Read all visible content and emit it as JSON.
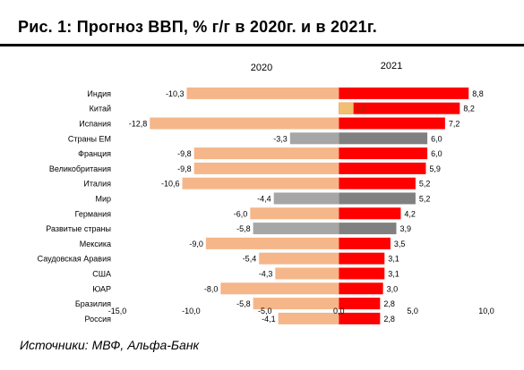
{
  "title": "Рис. 1: Прогноз ВВП, % г/г в 2020г. и в 2021г.",
  "source": "Источники:  МВФ, Альфа-Банк",
  "colors": {
    "bar_2020_light": "#f5b68a",
    "bar_2020_dark": "#a6a6a6",
    "bar_2021_red": "#ff0000",
    "bar_2021_dark": "#808080",
    "bar_china_2021": "#f0c070"
  },
  "chart_data": {
    "type": "bar",
    "orientation": "horizontal",
    "series_headers": [
      "2020",
      "2021"
    ],
    "categories": [
      "Индия",
      "Китай",
      "Испания",
      "Страны ЕМ",
      "Франция",
      "Великобритания",
      "Италия",
      "Мир",
      "Германия",
      "Развитые страны",
      "Мексика",
      "Саудовская Аравия",
      "США",
      "ЮАР",
      "Бразилия",
      "Россия"
    ],
    "series": [
      {
        "name": "2020",
        "values": [
          -10.3,
          1.0,
          -12.8,
          -3.3,
          -9.8,
          -9.8,
          -10.6,
          -4.4,
          -6.0,
          -5.8,
          -9.0,
          -5.4,
          -4.3,
          -8.0,
          -5.8,
          -4.1
        ],
        "labels": [
          "-10,3",
          "1,0",
          "-12,8",
          "-3,3",
          "-9,8",
          "-9,8",
          "-10,6",
          "-4,4",
          "-6,0",
          "-5,8",
          "-9,0",
          "-5,4",
          "-4,3",
          "-8,0",
          "-5,8",
          "-4,1"
        ]
      },
      {
        "name": "2021",
        "values": [
          8.8,
          8.2,
          7.2,
          6.0,
          6.0,
          5.9,
          5.2,
          5.2,
          4.2,
          3.9,
          3.5,
          3.1,
          3.1,
          3.0,
          2.8,
          2.8
        ],
        "labels": [
          "8,8",
          "8,2",
          "7,2",
          "6,0",
          "6,0",
          "5,9",
          "5,2",
          "5,2",
          "4,2",
          "3,9",
          "3,5",
          "3,1",
          "3,1",
          "3,0",
          "2,8",
          "2,8"
        ]
      }
    ],
    "highlighted_categories": [
      "Страны ЕМ",
      "Мир",
      "Развитые страны"
    ],
    "xlim": [
      -15,
      10
    ],
    "xticks": [
      -15,
      -10,
      -5,
      0,
      5,
      10
    ],
    "xtick_labels": [
      "-15,0",
      "-10,0",
      "-5,0",
      "0,0",
      "5,0",
      "10,0"
    ],
    "grid": false,
    "legend": "none"
  }
}
